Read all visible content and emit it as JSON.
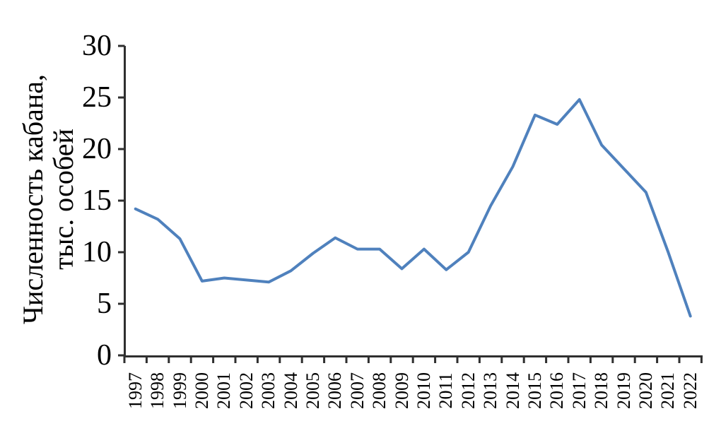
{
  "chart_data": {
    "type": "line",
    "title": "",
    "ylabel": "Численность кабана, тыс. особей",
    "ylabel_lines": [
      "Численность кабана,",
      "тыс. особей"
    ],
    "xlabel": "",
    "categories": [
      "1997",
      "1998",
      "1999",
      "2000",
      "2001",
      "2002",
      "2003",
      "2004",
      "2005",
      "2006",
      "2007",
      "2008",
      "2009",
      "2010",
      "2011",
      "2012",
      "2013",
      "2014",
      "2015",
      "2016",
      "2017",
      "2018",
      "2019",
      "2020",
      "2021",
      "2022"
    ],
    "series": [
      {
        "name": "Численность кабана",
        "values": [
          14.2,
          13.2,
          11.3,
          7.2,
          7.5,
          7.3,
          7.1,
          8.2,
          9.9,
          11.4,
          10.3,
          10.3,
          8.4,
          10.3,
          8.3,
          10.0,
          14.5,
          18.3,
          23.3,
          22.4,
          24.8,
          20.4,
          18.1,
          15.8,
          10.0,
          3.8
        ]
      }
    ],
    "yticks": [
      0,
      5,
      10,
      15,
      20,
      25,
      30
    ],
    "ylim": [
      0,
      30
    ],
    "grid": false,
    "legend_position": "none",
    "colors": {
      "line": "#4f81bd",
      "axis": "#2f2f2f",
      "text": "#000000",
      "background": "#ffffff"
    }
  }
}
